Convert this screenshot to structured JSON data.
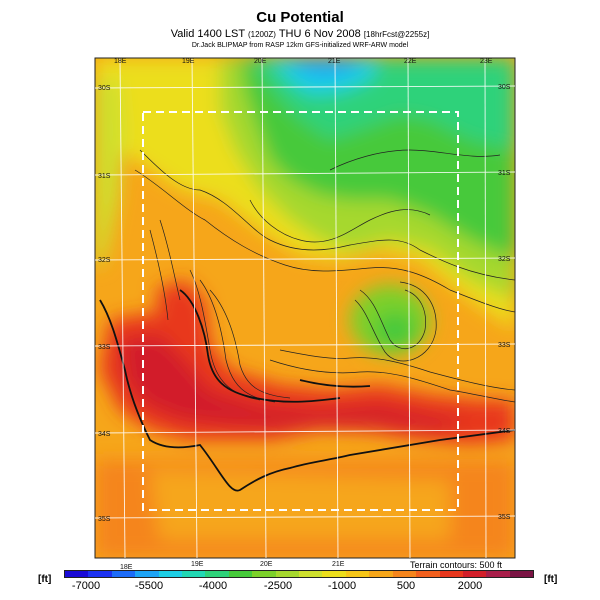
{
  "title": "Cu Potential",
  "subtitle": {
    "main": "Valid 1400 LST",
    "run": "(1200Z)",
    "date": "THU 6 Nov 2008",
    "forecast": "[18hrFcst@2255z]"
  },
  "model_line": "Dr.Jack BLIPMAP from RASP 12km GFS-initialized WRF-ARW model",
  "top_lon_labels": [
    "18E",
    "19E",
    "20E",
    "21E",
    "22E",
    "23E"
  ],
  "bottom_lon_labels": [
    "18E",
    "19E",
    "20E",
    "21E"
  ],
  "left_lat_labels": [
    "30S",
    "31S",
    "32S",
    "33S",
    "34S",
    "35S"
  ],
  "right_lat_labels": [
    "30S",
    "31S",
    "32S",
    "33S",
    "34S",
    "35S"
  ],
  "terrain_note": "Terrain contours: 500 ft",
  "colorbar": {
    "unit": "[ft]",
    "labels": [
      "-7000",
      "-5500",
      "-4000",
      "-2500",
      "-1000",
      "500",
      "2000"
    ],
    "colors": [
      "#1a0bd6",
      "#1c32f0",
      "#1d6cf8",
      "#1ea4f6",
      "#1ecfe6",
      "#22d8b4",
      "#2ed27a",
      "#46c93a",
      "#7cd02a",
      "#a6d82e",
      "#cfe02e",
      "#ecde1c",
      "#f6c618",
      "#f6a61a",
      "#f5851c",
      "#f2601e",
      "#e8381e",
      "#d21f2a",
      "#a81e4a",
      "#7a1444"
    ]
  },
  "legend_colors": {
    "deep": "#2ab7e8",
    "cool": "#46c93a",
    "mid": "#ecde1c",
    "warm": "#f6a61a",
    "hot": "#e8381e"
  }
}
